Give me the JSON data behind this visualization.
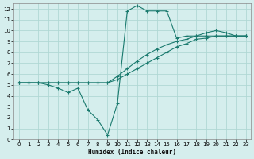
{
  "xlabel": "Humidex (Indice chaleur)",
  "xlim": [
    -0.5,
    23.5
  ],
  "ylim": [
    0,
    12.5
  ],
  "xticks": [
    0,
    1,
    2,
    3,
    4,
    5,
    6,
    7,
    8,
    9,
    10,
    11,
    12,
    13,
    14,
    15,
    16,
    17,
    18,
    19,
    20,
    21,
    22,
    23
  ],
  "yticks": [
    0,
    1,
    2,
    3,
    4,
    5,
    6,
    7,
    8,
    9,
    10,
    11,
    12
  ],
  "bg_color": "#d5eeed",
  "grid_color": "#b0d8d4",
  "line_color": "#1a7a6e",
  "lines": [
    {
      "x": [
        0,
        1,
        2,
        3,
        4,
        5,
        6,
        7,
        8,
        9,
        10,
        11,
        12,
        13,
        14,
        15,
        16,
        17,
        18,
        19,
        20,
        21,
        22,
        23
      ],
      "y": [
        5.2,
        5.2,
        5.2,
        5.0,
        4.7,
        4.3,
        4.7,
        2.7,
        1.8,
        0.4,
        3.3,
        11.8,
        12.3,
        11.8,
        11.8,
        11.8,
        9.3,
        9.5,
        9.5,
        9.5,
        9.5,
        9.5,
        9.5,
        9.5
      ]
    },
    {
      "x": [
        0,
        1,
        2,
        3,
        4,
        5,
        6,
        7,
        8,
        9,
        10,
        11,
        12,
        13,
        14,
        15,
        16,
        17,
        18,
        19,
        20,
        21,
        22,
        23
      ],
      "y": [
        5.2,
        5.2,
        5.2,
        5.2,
        5.2,
        5.2,
        5.2,
        5.2,
        5.2,
        5.2,
        5.5,
        6.0,
        6.5,
        7.0,
        7.5,
        8.0,
        8.5,
        8.8,
        9.2,
        9.3,
        9.5,
        9.5,
        9.5,
        9.5
      ]
    },
    {
      "x": [
        0,
        1,
        2,
        3,
        4,
        5,
        6,
        7,
        8,
        9,
        10,
        11,
        12,
        13,
        14,
        15,
        16,
        17,
        18,
        19,
        20,
        21,
        22,
        23
      ],
      "y": [
        5.2,
        5.2,
        5.2,
        5.2,
        5.2,
        5.2,
        5.2,
        5.2,
        5.2,
        5.2,
        5.8,
        6.5,
        7.2,
        7.8,
        8.3,
        8.7,
        9.0,
        9.2,
        9.5,
        9.8,
        10.0,
        9.8,
        9.5,
        9.5
      ]
    }
  ]
}
